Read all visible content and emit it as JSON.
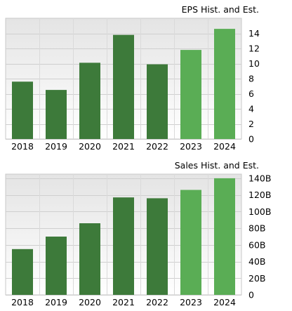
{
  "chart_data": [
    {
      "type": "bar",
      "title": "EPS Hist. and Est.",
      "categories": [
        "2018",
        "2019",
        "2020",
        "2021",
        "2022",
        "2023",
        "2024"
      ],
      "values": [
        7.6,
        6.5,
        10.1,
        13.8,
        9.9,
        11.8,
        14.6
      ],
      "estimate_start_index": 5,
      "ylim": [
        0,
        16
      ],
      "yticks": [
        0,
        2,
        4,
        6,
        8,
        10,
        12,
        14
      ],
      "ytick_labels": [
        "0",
        "2",
        "4",
        "6",
        "8",
        "10",
        "12",
        "14"
      ],
      "grid": true,
      "colors": {
        "historical": "#3d7a3a",
        "estimate": "#5aad55"
      }
    },
    {
      "type": "bar",
      "title": "Sales Hist. and Est.",
      "categories": [
        "2018",
        "2019",
        "2020",
        "2021",
        "2022",
        "2023",
        "2024"
      ],
      "values": [
        55,
        70,
        86,
        117,
        116,
        126,
        140
      ],
      "estimate_start_index": 5,
      "ylim": [
        0,
        145
      ],
      "yticks": [
        0,
        20,
        40,
        60,
        80,
        100,
        120,
        140
      ],
      "ytick_labels": [
        "0",
        "20B",
        "40B",
        "60B",
        "80B",
        "100B",
        "120B",
        "140B"
      ],
      "grid": true,
      "colors": {
        "historical": "#3d7a3a",
        "estimate": "#5aad55"
      }
    }
  ]
}
